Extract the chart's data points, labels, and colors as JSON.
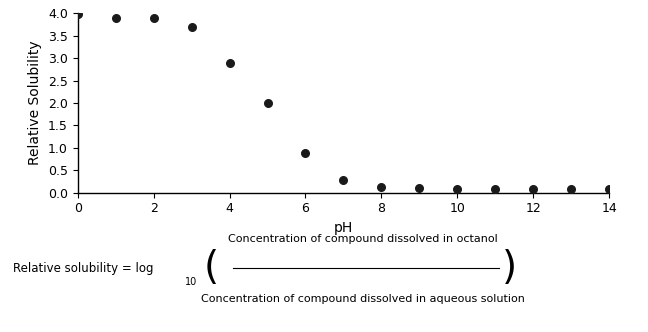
{
  "ph_values": [
    0,
    1,
    2,
    3,
    4,
    5,
    6,
    7,
    8,
    9,
    10,
    11,
    12,
    13,
    14
  ],
  "solubility": [
    3.98,
    3.9,
    3.9,
    3.7,
    2.88,
    2.0,
    0.88,
    0.27,
    0.13,
    0.1,
    0.09,
    0.09,
    0.09,
    0.09,
    0.09
  ],
  "xlabel": "pH",
  "ylabel": "Relative Solubility",
  "xlim": [
    0,
    14
  ],
  "ylim": [
    0,
    4.0
  ],
  "yticks": [
    0.0,
    0.5,
    1.0,
    1.5,
    2.0,
    2.5,
    3.0,
    3.5,
    4.0
  ],
  "xticks": [
    0,
    2,
    4,
    6,
    8,
    10,
    12,
    14
  ],
  "dot_color": "#1a1a1a",
  "dot_size": 30,
  "bg_color": "#ffffff",
  "formula_left": "Relative solubility = log",
  "formula_sub": "10",
  "formula_numerator": "Concentration of compound dissolved in octanol",
  "formula_denominator": "Concentration of compound dissolved in aqueous solution",
  "formula_bracket_open": "(",
  "formula_bracket_close": ")"
}
